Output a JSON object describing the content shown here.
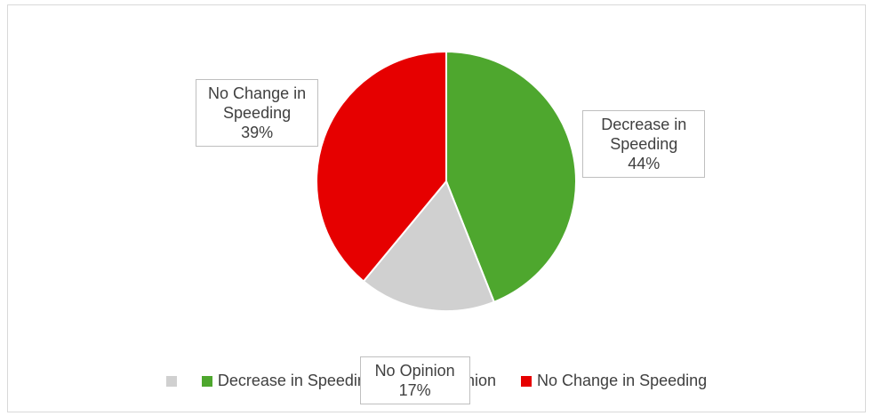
{
  "chart_data": {
    "type": "pie",
    "categories": [
      null,
      "Decrease in Speeding",
      "No Opinion",
      "No Change in Speeding"
    ],
    "values": [
      null,
      44,
      17,
      39
    ],
    "value_labels": [
      null,
      "44%",
      "17%",
      "39%"
    ],
    "colors": [
      "#d0d0d0",
      "#4ea72e",
      "#d0d0d0",
      "#e60000"
    ],
    "legend": "bottom"
  }
}
